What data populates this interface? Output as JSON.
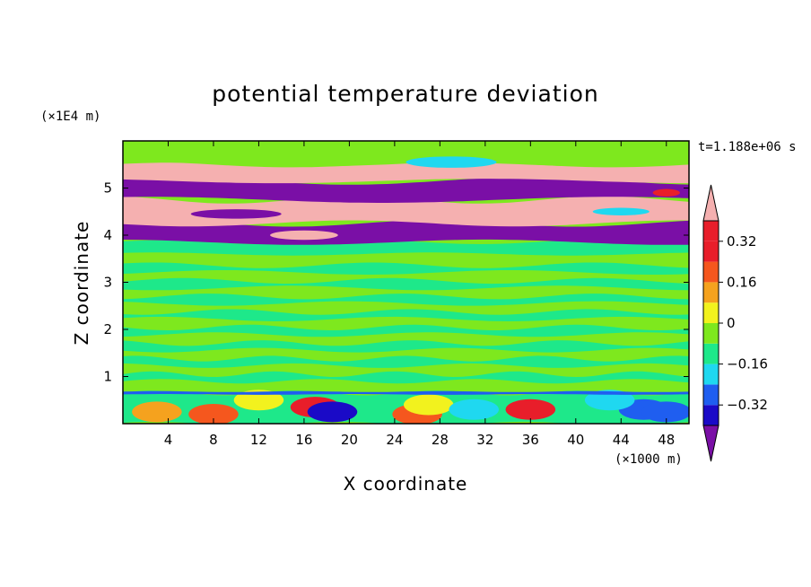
{
  "chart_data": {
    "type": "heatmap",
    "title": "potential temperature deviation",
    "xlabel": "X coordinate",
    "ylabel": "Z coordinate",
    "x_unit": "(×1000 m)",
    "y_unit": "(×1E4 m)",
    "time_label": "t=1.188e+06 s",
    "xlim": [
      0,
      50
    ],
    "ylim": [
      0,
      6
    ],
    "x_ticks": [
      "4",
      "8",
      "12",
      "16",
      "20",
      "24",
      "28",
      "32",
      "36",
      "40",
      "44",
      "48"
    ],
    "y_ticks": [
      "1",
      "2",
      "3",
      "4",
      "5"
    ],
    "colorbar": {
      "levels": [
        -0.4,
        -0.32,
        -0.24,
        -0.16,
        -0.08,
        0,
        0.08,
        0.16,
        0.24,
        0.32,
        0.4
      ],
      "tick_labels": [
        "0.32",
        "0.16",
        "0",
        "−0.16",
        "−0.32"
      ],
      "colors": [
        "#7a0fa6",
        "#1a0ac7",
        "#1f5ef0",
        "#1fd8f0",
        "#1ee88a",
        "#7ee81e",
        "#f2f21e",
        "#f5a21e",
        "#f5571e",
        "#e81e2a",
        "#f5b0b0"
      ]
    },
    "bands": [
      {
        "zmin": 0.0,
        "zmax": 0.65,
        "level": "mixed (-0.32 to 0.32)"
      },
      {
        "zmin": 0.65,
        "zmax": 3.6,
        "level": "0 to 0.08"
      },
      {
        "zmin": 3.6,
        "zmax": 3.85,
        "level": "-0.08 to 0"
      },
      {
        "zmin": 3.85,
        "zmax": 4.25,
        "level": "< -0.4"
      },
      {
        "zmin": 4.25,
        "zmax": 4.75,
        "level": "> 0.4"
      },
      {
        "zmin": 4.75,
        "zmax": 5.15,
        "level": "< -0.4"
      },
      {
        "zmin": 5.15,
        "zmax": 5.5,
        "level": "> 0.4"
      },
      {
        "zmin": 5.5,
        "zmax": 6.0,
        "level": "0 to 0.08"
      }
    ]
  }
}
